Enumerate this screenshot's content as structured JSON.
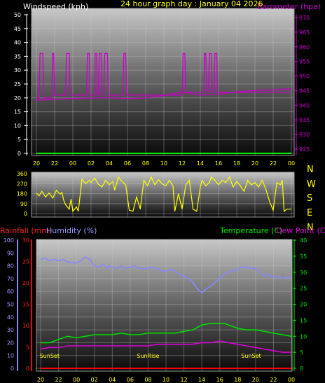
{
  "chart_data": [
    {
      "type": "line",
      "title": "24 hour graph day : January 04 2026",
      "left_axis_label": "Windspeed (kph)",
      "right_axis_label": "Barometer (hpa)",
      "x_ticks": [
        "20",
        "22",
        "00",
        "02",
        "04",
        "06",
        "08",
        "10",
        "12",
        "14",
        "16",
        "18",
        "20",
        "22",
        "00"
      ],
      "left_ylim": [
        0,
        50
      ],
      "left_ticks": [
        0,
        5,
        10,
        15,
        20,
        25,
        30,
        35,
        40,
        45,
        50
      ],
      "right_ylim": [
        922,
        974
      ],
      "right_ticks": [
        925,
        930,
        935,
        940,
        945,
        950,
        955,
        960,
        965,
        970
      ],
      "colors": {
        "windspeed": "#00ee00",
        "gust": "#cc00cc",
        "barometer": "#cc00cc",
        "title": "#ffff00"
      },
      "series": [
        {
          "axis": "left",
          "role": "wind",
          "x": [
            0,
            28
          ],
          "values": [
            0,
            0
          ]
        },
        {
          "axis": "left",
          "role": "gust",
          "x": [
            0,
            0.3,
            0.4,
            0.7,
            0.8,
            1.7,
            1.75,
            1.9,
            2.0,
            3.2,
            3.3,
            3.6,
            3.7,
            5.5,
            5.6,
            5.8,
            5.9,
            6.4,
            6.45,
            6.6,
            6.7,
            6.8,
            6.9,
            7.1,
            7.2,
            7.4,
            7.5,
            7.8,
            7.9,
            9.5,
            9.6,
            9.8,
            9.9,
            16.0,
            16.1,
            16.3,
            16.4,
            18.4,
            18.45,
            18.6,
            18.7,
            18.9,
            19.0,
            19.2,
            19.3,
            19.5,
            19.6,
            19.8,
            19.9,
            28
          ],
          "values": [
            20,
            20,
            36,
            36,
            20,
            20,
            36,
            36,
            21,
            21,
            36,
            36,
            21,
            21,
            36,
            36,
            21,
            21,
            36,
            36,
            21,
            21,
            36,
            36,
            21,
            21,
            36,
            36,
            21,
            21,
            36,
            36,
            21,
            21,
            36,
            36,
            22,
            22,
            36,
            36,
            22,
            22,
            36,
            36,
            22,
            22,
            36,
            36,
            22,
            22
          ]
        },
        {
          "axis": "right",
          "role": "barometer",
          "x": [
            0,
            4,
            8,
            10,
            12,
            14,
            16,
            18,
            20,
            22,
            24,
            26,
            28
          ],
          "values": [
            941.7,
            942.3,
            942.6,
            942.3,
            942.5,
            943.3,
            944.6,
            943.4,
            943.8,
            944.6,
            945.0,
            945.3,
            945.7
          ]
        }
      ]
    },
    {
      "type": "line",
      "left_ylim": [
        0,
        360
      ],
      "left_ticks": [
        0,
        90,
        180,
        270,
        360
      ],
      "right_labels": [
        "N",
        "W",
        "S",
        "E",
        "N"
      ],
      "colors": {
        "direction": "#ffff00"
      },
      "series": [
        {
          "role": "direction",
          "x": [
            0,
            0.3,
            0.6,
            1.0,
            1.4,
            1.8,
            2.2,
            2.6,
            2.8,
            3.0,
            3.2,
            3.6,
            3.8,
            4.0,
            4.4,
            4.6,
            5.0,
            5.4,
            5.8,
            6.0,
            6.4,
            6.8,
            7.2,
            7.6,
            8.0,
            8.4,
            8.6,
            9.0,
            9.4,
            9.8,
            10.2,
            10.6,
            11.0,
            11.4,
            11.8,
            12.2,
            12.6,
            13.0,
            13.4,
            13.8,
            14.2,
            14.6,
            15.0,
            15.2,
            15.6,
            16.0,
            16.4,
            16.8,
            17.2,
            17.6,
            18.0,
            18.2,
            18.6,
            19.0,
            19.2,
            19.6,
            20.0,
            20.4,
            20.8,
            21.2,
            21.6,
            22.0,
            22.4,
            22.8,
            23.2,
            23.6,
            24.0,
            24.4,
            24.8,
            25.2,
            25.6,
            26.0,
            26.4,
            26.8,
            27.0,
            27.2,
            27.5,
            28.0
          ],
          "values": [
            185,
            160,
            200,
            150,
            185,
            140,
            210,
            175,
            190,
            120,
            80,
            40,
            130,
            20,
            60,
            20,
            310,
            270,
            300,
            280,
            320,
            265,
            240,
            300,
            260,
            290,
            210,
            330,
            290,
            260,
            30,
            20,
            150,
            40,
            300,
            250,
            330,
            260,
            305,
            270,
            250,
            300,
            250,
            20,
            180,
            40,
            260,
            300,
            40,
            20,
            240,
            300,
            250,
            280,
            330,
            300,
            260,
            300,
            280,
            330,
            240,
            290,
            250,
            200,
            300,
            260,
            280,
            240,
            300,
            220,
            110,
            30,
            280,
            260,
            300,
            20,
            40,
            40
          ]
        }
      ]
    },
    {
      "type": "line",
      "left_axis_labels": [
        "Rainfall (mm)",
        "Humidity (%)"
      ],
      "right_axis_labels": [
        "Temperature (C)",
        "Dew Point (C)"
      ],
      "x_ticks": [
        "20",
        "22",
        "00",
        "02",
        "04",
        "06",
        "08",
        "10",
        "12",
        "14",
        "16",
        "18",
        "20",
        "22",
        "00"
      ],
      "humidity_ylim": [
        0,
        100
      ],
      "humidity_ticks": [
        0,
        10,
        20,
        30,
        40,
        50,
        60,
        70,
        80,
        90,
        100
      ],
      "rain_ylim": [
        0,
        30
      ],
      "rain_ticks": [
        0,
        5,
        10,
        15,
        20,
        25,
        30
      ],
      "temp_ylim": [
        0,
        40
      ],
      "temp_ticks": [
        0,
        5,
        10,
        15,
        20,
        25,
        30,
        35,
        40
      ],
      "annotations": [
        {
          "text": "SunSet",
          "x": 1.0
        },
        {
          "text": "SunRise",
          "x": 12.0
        },
        {
          "text": "SunSet",
          "x": 23.5
        }
      ],
      "colors": {
        "rainfall": "#ff0000",
        "humidity": "#8888ff",
        "temperature": "#00dd00",
        "dewpoint": "#dd00dd"
      },
      "series": [
        {
          "role": "rainfall",
          "axis": "rain",
          "x": [
            0,
            28
          ],
          "values": [
            0,
            0
          ]
        },
        {
          "role": "humidity",
          "axis": "humidity",
          "x": [
            0,
            0.5,
            1.0,
            1.5,
            2.0,
            2.5,
            3.0,
            4.0,
            4.5,
            5.0,
            5.5,
            6.0,
            6.5,
            7.0,
            7.5,
            7.6,
            8.0,
            8.5,
            9.0,
            9.5,
            10.0,
            10.5,
            11.0,
            11.5,
            12.0,
            12.5,
            13.0,
            13.5,
            14.0,
            14.5,
            15.0,
            15.5,
            16.0,
            16.5,
            17.0,
            17.5,
            18.0,
            18.5,
            19.0,
            19.5,
            20.0,
            20.5,
            21.0,
            21.5,
            22.0,
            22.5,
            23.0,
            23.5,
            24.0,
            24.5,
            25.0,
            25.5,
            26.0,
            26.5,
            27.0,
            27.5,
            28.0
          ],
          "values": [
            85,
            86,
            84,
            85,
            84,
            85,
            83,
            82,
            84,
            87,
            85,
            80,
            79,
            81,
            78,
            80,
            79,
            78,
            80,
            78,
            79,
            80,
            78,
            78,
            78,
            79,
            78,
            76,
            76,
            77,
            76,
            73,
            72,
            70,
            67,
            62,
            59,
            62,
            64,
            67,
            70,
            73,
            75,
            76,
            77,
            79,
            79,
            78,
            78,
            75,
            72,
            73,
            71,
            72,
            70,
            71,
            71
          ]
        },
        {
          "role": "temperature",
          "axis": "temp",
          "x": [
            0,
            1,
            2,
            3,
            4,
            5,
            6,
            7,
            8,
            9,
            10,
            11,
            12,
            13,
            14,
            15,
            16,
            17,
            18,
            19,
            19.5,
            20,
            20.5,
            21,
            22,
            23,
            24,
            25,
            26,
            27,
            28
          ],
          "values": [
            8,
            8,
            9,
            10,
            9.5,
            10,
            10.5,
            10.5,
            10.5,
            11,
            10.5,
            10.5,
            11,
            11,
            11,
            11,
            11.5,
            12,
            13.5,
            14,
            14,
            14,
            14,
            13.5,
            12.5,
            12,
            12,
            11.5,
            11,
            10.5,
            10
          ]
        },
        {
          "role": "dewpoint",
          "axis": "temp",
          "x": [
            0,
            1,
            2,
            3,
            4,
            5,
            6,
            7,
            8,
            9,
            10,
            11,
            12,
            13,
            14,
            15,
            16,
            17,
            18,
            19,
            20,
            21,
            22,
            23,
            24,
            25,
            26,
            27,
            28
          ],
          "values": [
            6.0,
            6.5,
            6.5,
            7.0,
            7.0,
            7.0,
            7.0,
            7.0,
            7.0,
            7.0,
            7.0,
            7.0,
            7.0,
            7.5,
            7.5,
            7.5,
            7.5,
            7.5,
            8.0,
            8.0,
            8.5,
            8.0,
            7.5,
            7.0,
            6.5,
            6.0,
            5.5,
            5.0,
            5.0
          ]
        }
      ]
    }
  ]
}
